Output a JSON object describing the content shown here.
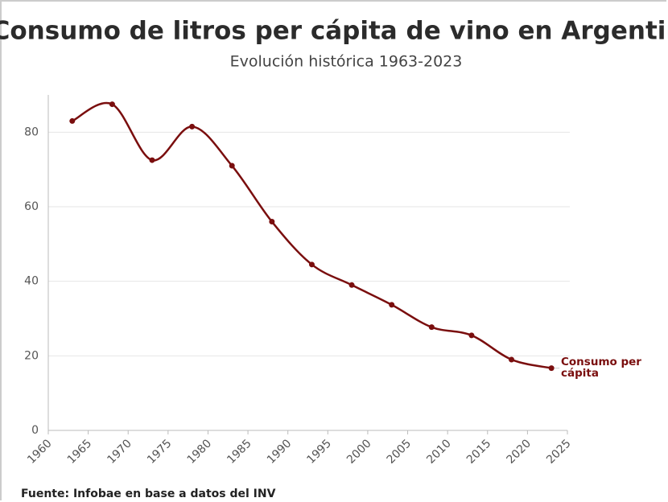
{
  "chart_data": {
    "type": "line",
    "title": "Consumo de litros per cápita de vino en Argentina",
    "subtitle": "Evolución histórica 1963-2023",
    "source": "Fuente: Infobae en base a datos del INV",
    "x": [
      1963,
      1968,
      1973,
      1978,
      1983,
      1988,
      1993,
      1998,
      2003,
      2008,
      2013,
      2018,
      2023
    ],
    "series": [
      {
        "name": "Consumo per cápita",
        "color": "#7a0e0e",
        "values": [
          83,
          87.5,
          72.5,
          81.5,
          71,
          56,
          44.5,
          39,
          33.7,
          27.7,
          25.5,
          19,
          16.7
        ]
      }
    ],
    "xlim": [
      1960,
      2025
    ],
    "xticks": [
      1960,
      1965,
      1970,
      1975,
      1980,
      1985,
      1990,
      1995,
      2000,
      2005,
      2010,
      2015,
      2020,
      2025
    ],
    "ylim": [
      0,
      90
    ],
    "yticks": [
      0,
      20,
      40,
      60,
      80
    ],
    "grid": true
  }
}
